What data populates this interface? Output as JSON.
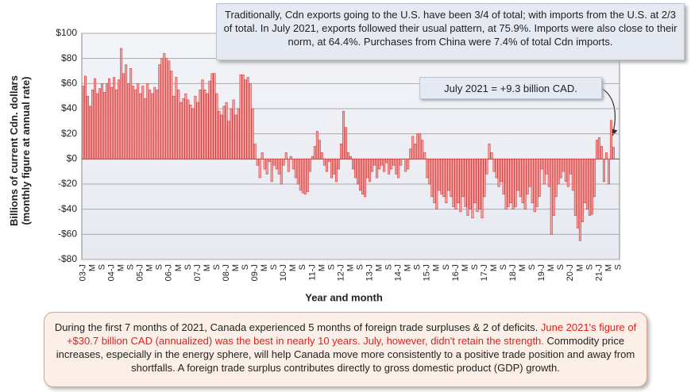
{
  "chart_data": {
    "type": "bar",
    "y_label": "Billions of current Cdn. dollars (monthly figure at annual rate)",
    "x_label": "Year and month",
    "top_note": "Traditionally, Cdn exports going to the U.S. have been 3/4 of total; with imports from the U.S. at 2/3 of total. In July 2021, exports followed their usual pattern, at 75.9%. Imports were also close to their norm, at 64.4%. Purchases from China were 7.4% of total Cdn imports.",
    "callout": "July 2021 = +9.3 billion CAD.",
    "bottom_note": [
      "During the first 7 months of 2021, Canada experienced 5 months of foreign trade surpluses & 2 of deficits. ",
      "June 2021's figure of +$30.7 billion CAD (annualized) was the best in nearly 10 years. July, however, didn't retain the strength.",
      " Commodity price increases, especially in the energy sphere, will help Canada move more consistently to a positive trade position and away from shortfalls. A foreign trade surplus contributes directly to gross domestic product (GDP) growth."
    ],
    "highlight_color": "#e0201a",
    "color": "#f5a3a3",
    "edge_color": "#d03a3a",
    "grid": true,
    "ylim": [
      -80,
      100
    ],
    "yticks": [
      {
        "value": -80,
        "label": "-$80"
      },
      {
        "value": -60,
        "label": "-$60"
      },
      {
        "value": -40,
        "label": "-$40"
      },
      {
        "value": -20,
        "label": "-$20"
      },
      {
        "value": 0,
        "label": "$0"
      },
      {
        "value": 20,
        "label": "$20"
      },
      {
        "value": 40,
        "label": "$40"
      },
      {
        "value": 60,
        "label": "$60"
      },
      {
        "value": 80,
        "label": "$80"
      },
      {
        "value": 100,
        "label": "$100"
      }
    ],
    "categories": [
      "03-J",
      null,
      null,
      null,
      "M",
      null,
      null,
      null,
      "S",
      null,
      null,
      null,
      "04-J",
      null,
      null,
      null,
      "M",
      null,
      null,
      null,
      "S",
      null,
      null,
      null,
      "05-J",
      null,
      null,
      null,
      "M",
      null,
      null,
      null,
      "S",
      null,
      null,
      null,
      "06-J",
      null,
      null,
      null,
      "M",
      null,
      null,
      null,
      "S",
      null,
      null,
      null,
      "07-J",
      null,
      null,
      null,
      "M",
      null,
      null,
      null,
      "S",
      null,
      null,
      null,
      "08-J",
      null,
      null,
      null,
      "M",
      null,
      null,
      null,
      "S",
      null,
      null,
      null,
      "09-J",
      null,
      null,
      null,
      "M",
      null,
      null,
      null,
      "S",
      null,
      null,
      null,
      "10-J",
      null,
      null,
      null,
      "M",
      null,
      null,
      null,
      "S",
      null,
      null,
      null,
      "11-J",
      null,
      null,
      null,
      "M",
      null,
      null,
      null,
      "S",
      null,
      null,
      null,
      "12-J",
      null,
      null,
      null,
      "M",
      null,
      null,
      null,
      "S",
      null,
      null,
      null,
      "13-J",
      null,
      null,
      null,
      "M",
      null,
      null,
      null,
      "S",
      null,
      null,
      null,
      "14-J",
      null,
      null,
      null,
      "M",
      null,
      null,
      null,
      "S",
      null,
      null,
      null,
      "15-J",
      null,
      null,
      null,
      "M",
      null,
      null,
      null,
      "S",
      null,
      null,
      null,
      "16-J",
      null,
      null,
      null,
      "M",
      null,
      null,
      null,
      "S",
      null,
      null,
      null,
      "17-J",
      null,
      null,
      null,
      "M",
      null,
      null,
      null,
      "S",
      null,
      null,
      null,
      "18-J",
      null,
      null,
      null,
      "M",
      null,
      null,
      null,
      "S",
      null,
      null,
      null,
      "19-J",
      null,
      null,
      null,
      "M",
      null,
      null,
      null,
      "S",
      null,
      null,
      null,
      "20-J",
      null,
      null,
      null,
      "M",
      null,
      null,
      null,
      "S",
      null,
      null,
      null,
      "21-J",
      null,
      null,
      null,
      "M",
      null,
      null,
      null,
      "S"
    ],
    "values": [
      58,
      66,
      50,
      42,
      55,
      64,
      52,
      56,
      60,
      53,
      60,
      64,
      57,
      65,
      55,
      63,
      88,
      68,
      75,
      60,
      72,
      58,
      55,
      60,
      52,
      58,
      48,
      60,
      55,
      52,
      57,
      55,
      75,
      80,
      84,
      80,
      78,
      70,
      50,
      65,
      55,
      45,
      48,
      52,
      47,
      43,
      40,
      50,
      45,
      55,
      63,
      55,
      52,
      62,
      68,
      68,
      52,
      38,
      35,
      42,
      45,
      30,
      40,
      47,
      35,
      40,
      67,
      67,
      63,
      65,
      60,
      40,
      12,
      -5,
      -15,
      5,
      -8,
      -12,
      -2,
      -18,
      -5,
      -8,
      -12,
      -20,
      -5,
      5,
      -10,
      2,
      -8,
      -15,
      -20,
      -25,
      -27,
      -28,
      -26,
      -10,
      2,
      10,
      22,
      15,
      5,
      -5,
      -10,
      -2,
      -15,
      -12,
      -18,
      -8,
      12,
      38,
      25,
      5,
      2,
      -8,
      -15,
      -20,
      -25,
      -28,
      -30,
      -15,
      -18,
      -10,
      -5,
      -15,
      -8,
      -5,
      -10,
      -3,
      -12,
      -8,
      -5,
      -12,
      -15,
      -5,
      0,
      -10,
      -8,
      8,
      18,
      12,
      20,
      20,
      15,
      5,
      -15,
      -20,
      -30,
      -35,
      -40,
      -25,
      -28,
      -30,
      -35,
      -25,
      -30,
      -38,
      -40,
      -35,
      -42,
      -30,
      -38,
      -45,
      -40,
      -47,
      -35,
      -42,
      -40,
      -47,
      -30,
      -12,
      12,
      5,
      -10,
      -15,
      -22,
      -18,
      -28,
      -40,
      -38,
      -35,
      -40,
      -38,
      -25,
      -30,
      -35,
      -40,
      -28,
      -22,
      -35,
      -42,
      -38,
      -30,
      -8,
      -20,
      -12,
      -22,
      -60,
      -45,
      -30,
      -20,
      -15,
      -10,
      -18,
      -22,
      -12,
      -25,
      -45,
      -55,
      -65,
      -50,
      -35,
      -40,
      -45,
      -44,
      -30,
      15,
      17,
      10,
      -18,
      5,
      -20,
      30.7,
      9.3,
      null,
      null
    ]
  }
}
